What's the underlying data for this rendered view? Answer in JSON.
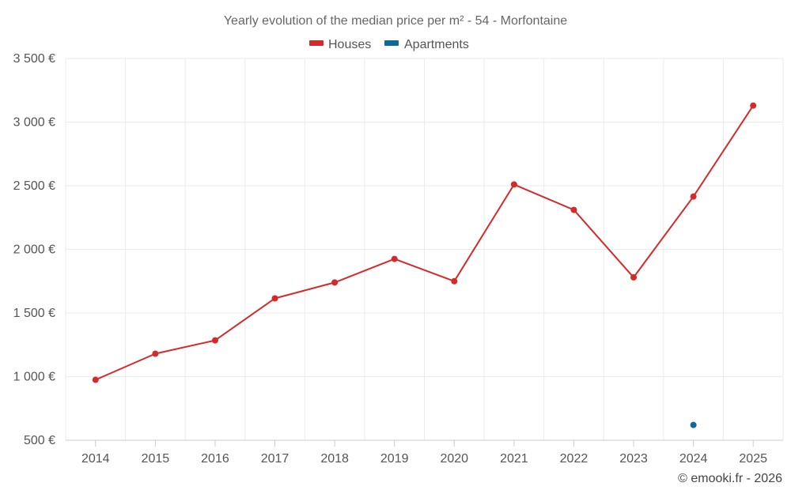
{
  "chart_data": {
    "type": "line",
    "title": "Yearly evolution of the median price per m² - 54 - Morfontaine",
    "categories": [
      "2014",
      "2015",
      "2016",
      "2017",
      "2018",
      "2019",
      "2020",
      "2021",
      "2022",
      "2023",
      "2024",
      "2025"
    ],
    "y_ticks": [
      "500 €",
      "1 000 €",
      "1 500 €",
      "2 000 €",
      "2 500 €",
      "3 000 €",
      "3 500 €"
    ],
    "y_tick_values": [
      500,
      1000,
      1500,
      2000,
      2500,
      3000,
      3500
    ],
    "ylim": [
      500,
      3500
    ],
    "grid": true,
    "legend_position": "top-center",
    "series": [
      {
        "name": "Houses",
        "color": "#d42a2a",
        "values": [
          975,
          1180,
          1285,
          1615,
          1740,
          1925,
          1750,
          2510,
          2310,
          1780,
          2415,
          3130
        ]
      },
      {
        "name": "Apartments",
        "color": "#0f67a0",
        "values": [
          null,
          null,
          null,
          null,
          null,
          null,
          null,
          null,
          null,
          null,
          620,
          null
        ]
      }
    ],
    "credit": "© emooki.fr - 2026"
  }
}
